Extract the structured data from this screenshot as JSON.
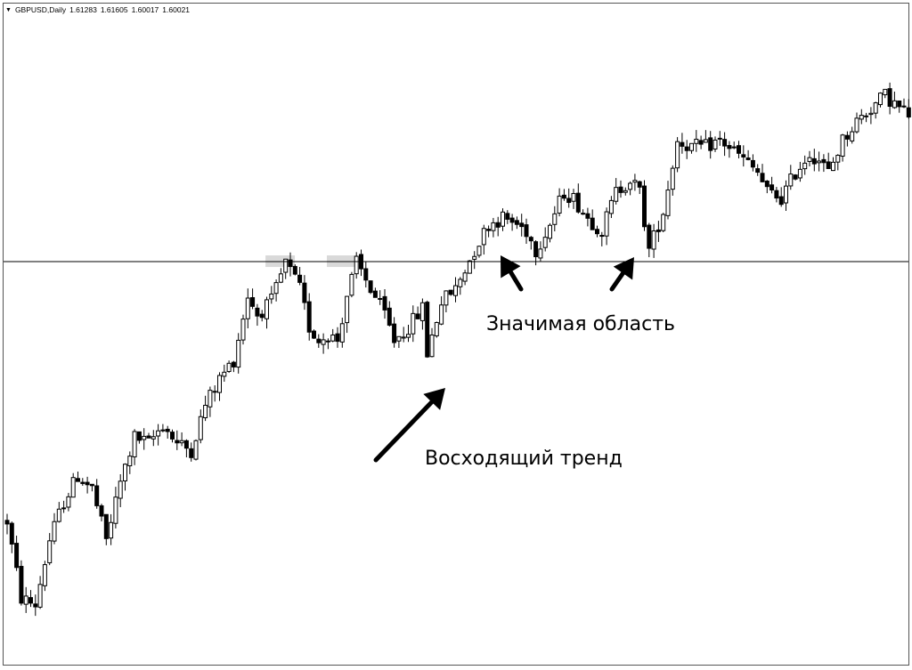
{
  "header": {
    "symbol_label": "GBPUSD,Daily",
    "ohlc_text": [
      "1.61283",
      "1.61605",
      "1.60017",
      "1.60021"
    ]
  },
  "annotations": {
    "significant_zone": "Значимая область",
    "uptrend": "Восходящий тренд"
  },
  "chart_data": {
    "type": "candlestick",
    "title": "",
    "symbol": "GBPUSD",
    "timeframe": "Daily",
    "y_axis_visible": false,
    "x_axis_visible": false,
    "ylim": [
      0,
      100
    ],
    "grid": false,
    "colors": {
      "bull": "#ffffff",
      "bear": "#000000",
      "wick": "#000000",
      "level": "#000000",
      "marker": "#d9d9d9"
    },
    "support_resistance_level": 62.2,
    "waypoints": [
      [
        0,
        22
      ],
      [
        3,
        10
      ],
      [
        6,
        9
      ],
      [
        9,
        19
      ],
      [
        12,
        25
      ],
      [
        15,
        29
      ],
      [
        18,
        27
      ],
      [
        21,
        19
      ],
      [
        24,
        28
      ],
      [
        27,
        35
      ],
      [
        30,
        34
      ],
      [
        33,
        37
      ],
      [
        36,
        34
      ],
      [
        39,
        33
      ],
      [
        42,
        40
      ],
      [
        45,
        44
      ],
      [
        48,
        47
      ],
      [
        51,
        57
      ],
      [
        53,
        54
      ],
      [
        56,
        56
      ],
      [
        59,
        62
      ],
      [
        62,
        58
      ],
      [
        64,
        52
      ],
      [
        66,
        50
      ],
      [
        68,
        51
      ],
      [
        70,
        50
      ],
      [
        72,
        57
      ],
      [
        74,
        62
      ],
      [
        77,
        58
      ],
      [
        80,
        54
      ],
      [
        82,
        50
      ],
      [
        85,
        52
      ],
      [
        88,
        55
      ],
      [
        89,
        48
      ],
      [
        92,
        56
      ],
      [
        95,
        58
      ],
      [
        97,
        61
      ],
      [
        99,
        64
      ],
      [
        102,
        68
      ],
      [
        105,
        69
      ],
      [
        108,
        68
      ],
      [
        110,
        67
      ],
      [
        112,
        64
      ],
      [
        115,
        68
      ],
      [
        118,
        73
      ],
      [
        120,
        72
      ],
      [
        123,
        69
      ],
      [
        126,
        67
      ],
      [
        129,
        73
      ],
      [
        132,
        75
      ],
      [
        134,
        73
      ],
      [
        136,
        64
      ],
      [
        139,
        70
      ],
      [
        142,
        81
      ],
      [
        145,
        80
      ],
      [
        148,
        80
      ],
      [
        151,
        81
      ],
      [
        153,
        80
      ],
      [
        156,
        78
      ],
      [
        159,
        76
      ],
      [
        161,
        73
      ],
      [
        164,
        72
      ],
      [
        167,
        76
      ],
      [
        170,
        79
      ],
      [
        172,
        78
      ],
      [
        174,
        76
      ],
      [
        177,
        81
      ],
      [
        180,
        84
      ],
      [
        183,
        86
      ],
      [
        186,
        88
      ],
      [
        189,
        86
      ],
      [
        191,
        85
      ]
    ],
    "annotations": [
      {
        "text": "Значимая область",
        "type": "label"
      },
      {
        "text": "Восходящий тренд",
        "type": "label"
      }
    ]
  }
}
